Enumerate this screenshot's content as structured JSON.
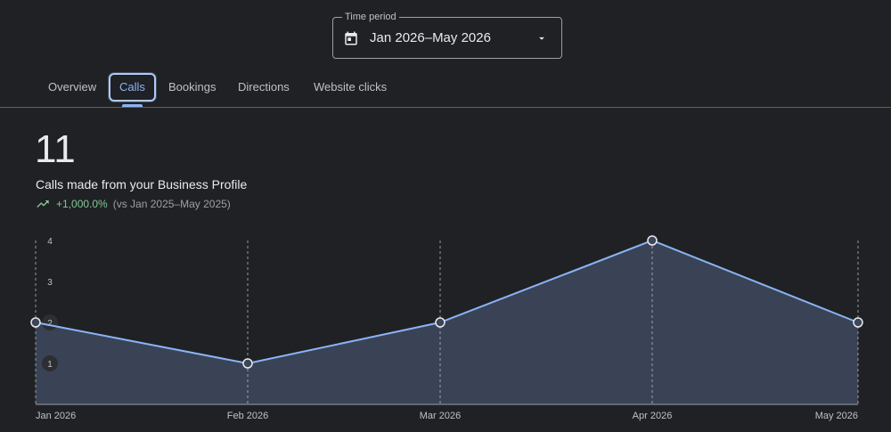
{
  "period": {
    "legend": "Time period",
    "value": "Jan 2026–May 2026",
    "calendar_icon": "calendar-icon",
    "caret_icon": "dropdown-caret-icon"
  },
  "tabs": [
    {
      "label": "Overview",
      "active": false
    },
    {
      "label": "Calls",
      "active": true
    },
    {
      "label": "Bookings",
      "active": false
    },
    {
      "label": "Directions",
      "active": false
    },
    {
      "label": "Website clicks",
      "active": false
    }
  ],
  "summary": {
    "total": "11",
    "label": "Calls made from your Business Profile",
    "trend_icon": "trending-up-icon",
    "change": "+1,000.0%",
    "compare": "(vs Jan 2025–May 2025)"
  },
  "colors": {
    "background": "#202124",
    "line": "#8ab4f8",
    "area": "#3c4658",
    "positive": "#81c995"
  },
  "chart_data": {
    "type": "area",
    "x": [
      "Jan 2026",
      "Feb 2026",
      "Mar 2026",
      "Apr 2026",
      "May 2026"
    ],
    "values": [
      2,
      1,
      2,
      4,
      2
    ],
    "y_ticks": [
      "1",
      "2",
      "3",
      "4"
    ],
    "ylim": [
      0,
      4
    ],
    "grid": "vertical-dashed"
  }
}
